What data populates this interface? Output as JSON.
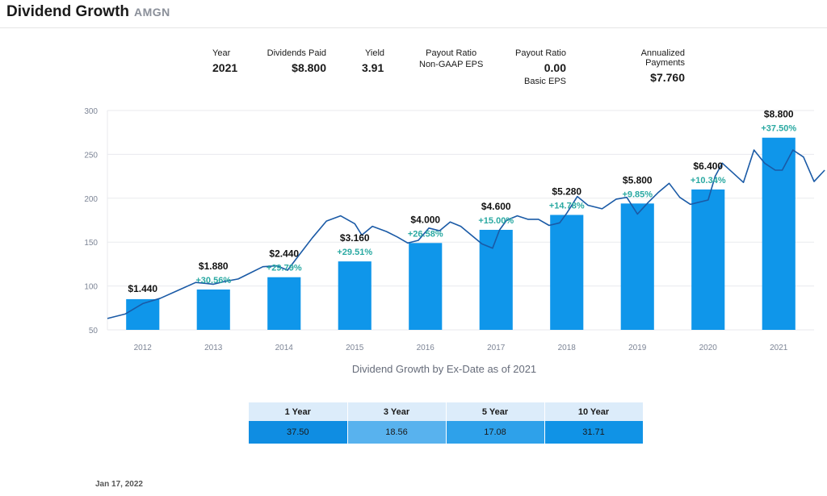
{
  "header": {
    "title": "Dividend Growth",
    "ticker": "AMGN"
  },
  "summary": {
    "year_label": "Year",
    "year_value": "2021",
    "dividends_label": "Dividends Paid",
    "dividends_value": "$8.800",
    "yield_label": "Yield",
    "yield_value": "3.91",
    "payout_gaap_label": "Payout Ratio",
    "payout_gaap_sub": "Non-GAAP EPS",
    "payout_basic_label": "Payout Ratio",
    "payout_basic_value": "0.00",
    "payout_basic_sub": "Basic EPS",
    "annualized_label": "Annualized Payments",
    "annualized_value": "$7.760"
  },
  "chart_data": {
    "type": "bar+line",
    "title": "",
    "caption": "Dividend Growth by Ex-Date as of 2021",
    "categories": [
      "2012",
      "2013",
      "2014",
      "2015",
      "2016",
      "2017",
      "2018",
      "2019",
      "2020",
      "2021"
    ],
    "ylim": [
      50,
      300
    ],
    "yticks": [
      50,
      100,
      150,
      200,
      250,
      300
    ],
    "ytick_labels": [
      "50",
      "100",
      "150",
      "200",
      "250",
      "300"
    ],
    "bar_values": [
      85,
      96,
      110,
      128,
      149,
      164,
      181,
      194,
      210,
      269
    ],
    "bar_labels": [
      "$1.440",
      "$1.880",
      "$2.440",
      "$3.160",
      "$4.000",
      "$4.600",
      "$5.280",
      "$5.800",
      "$6.400",
      "$8.800"
    ],
    "growth_labels": [
      "",
      "+30.56%",
      "+29.79%",
      "+29.51%",
      "+26.58%",
      "+15.00%",
      "+14.78%",
      "+9.85%",
      "+10.34%",
      "+37.50%"
    ],
    "price_series": {
      "x": [
        2011.5,
        2011.75,
        2012.0,
        2012.25,
        2012.5,
        2012.75,
        2013.0,
        2013.15,
        2013.35,
        2013.5,
        2013.7,
        2013.9,
        2014.05,
        2014.2,
        2014.4,
        2014.6,
        2014.8,
        2015.0,
        2015.1,
        2015.25,
        2015.45,
        2015.6,
        2015.75,
        2015.9,
        2016.05,
        2016.2,
        2016.35,
        2016.5,
        2016.65,
        2016.8,
        2016.95,
        2017.05,
        2017.15,
        2017.3,
        2017.45,
        2017.6,
        2017.75,
        2017.9,
        2018.0,
        2018.15,
        2018.3,
        2018.5,
        2018.7,
        2018.85,
        2019.0,
        2019.15,
        2019.3,
        2019.45,
        2019.6,
        2019.75,
        2019.85,
        2020.0,
        2020.1,
        2020.2,
        2020.35,
        2020.5,
        2020.65,
        2020.8,
        2020.95,
        2021.05,
        2021.2,
        2021.35,
        2021.5,
        2021.65
      ],
      "y": [
        63,
        68,
        80,
        86,
        95,
        104,
        102,
        105,
        108,
        114,
        122,
        123,
        118,
        134,
        155,
        174,
        180,
        171,
        158,
        168,
        162,
        156,
        149,
        152,
        166,
        163,
        173,
        168,
        158,
        148,
        143,
        164,
        175,
        180,
        176,
        176,
        169,
        172,
        183,
        202,
        192,
        188,
        199,
        201,
        182,
        195,
        207,
        217,
        201,
        193,
        195,
        198,
        225,
        240,
        229,
        218,
        255,
        240,
        232,
        232,
        255,
        247,
        219,
        232
      ]
    }
  },
  "growth_table": {
    "headers": [
      "1 Year",
      "3 Year",
      "5 Year",
      "10 Year"
    ],
    "values": [
      "37.50",
      "18.56",
      "17.08",
      "31.71"
    ],
    "colors": [
      "#0f8de2",
      "#58b2ee",
      "#2ea1ea",
      "#1093e6"
    ]
  },
  "footer": {
    "date": "Jan 17, 2022"
  },
  "colors": {
    "bar": "#0f96ea",
    "price_line": "#1a5aa6",
    "growth_label": "#2aa9a2",
    "axis_text": "#7d8596",
    "grid": "#e8eaee"
  }
}
